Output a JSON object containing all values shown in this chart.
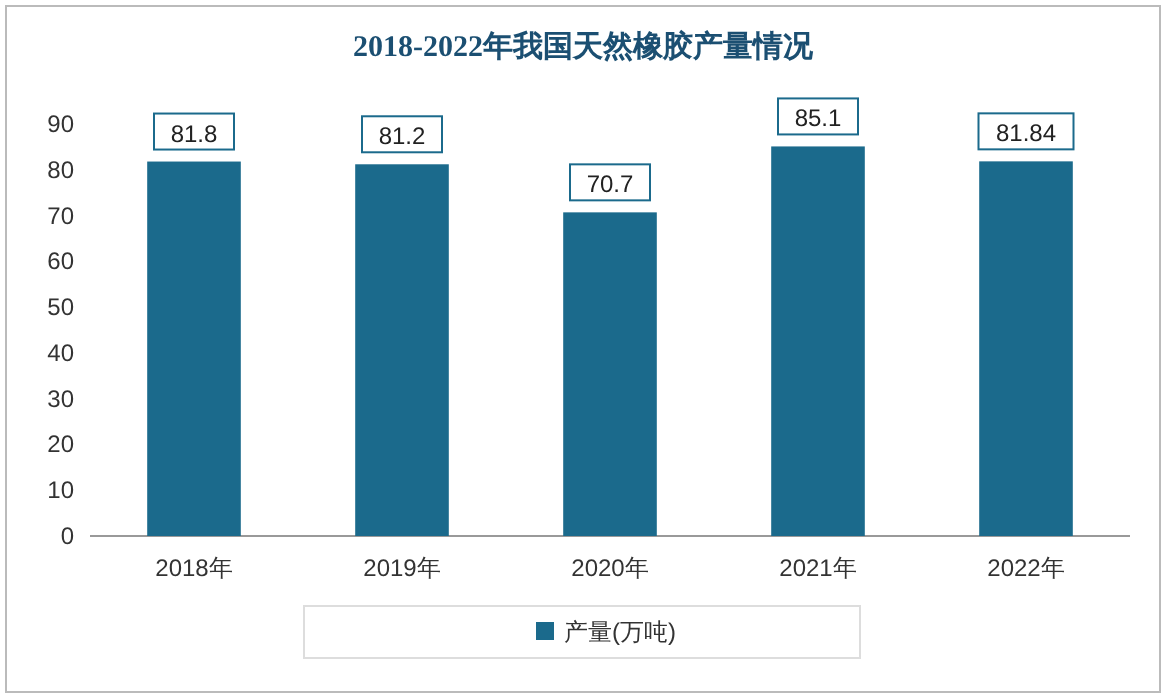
{
  "chart_data": {
    "type": "bar",
    "title": "2018-2022年我国天然橡胶产量情况",
    "categories": [
      "2018年",
      "2019年",
      "2020年",
      "2021年",
      "2022年"
    ],
    "series": [
      {
        "name": "产量(万吨)",
        "color": "#1b6a8c",
        "values": [
          81.8,
          81.2,
          70.7,
          85.1,
          81.84
        ]
      }
    ],
    "ylim": [
      0,
      90
    ],
    "yticks": [
      0,
      10,
      20,
      30,
      40,
      50,
      60,
      70,
      80,
      90
    ],
    "data_labels": true,
    "legend": "bottom"
  }
}
